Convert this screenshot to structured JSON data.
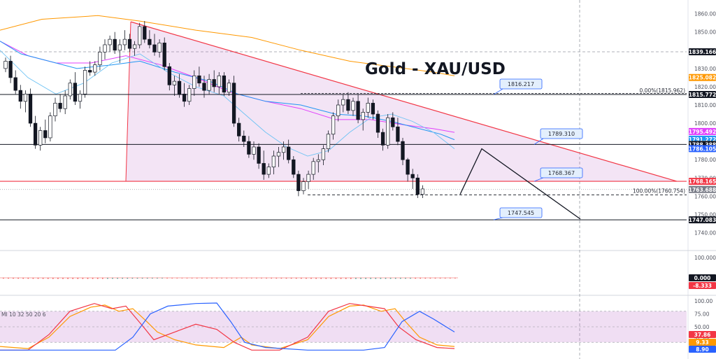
{
  "chart_data": {
    "type": "candlestick",
    "title": "Gold - XAU/USD",
    "y_axis": {
      "ylim": [
        1731,
        1866
      ],
      "ticks": [
        "1860.000",
        "1850.000",
        "1840.000",
        "1830.000",
        "1820.000",
        "1810.000",
        "1800.000",
        "1790.000",
        "1780.000",
        "1770.000",
        "1760.000",
        "1750.000",
        "1740.000"
      ]
    },
    "candles": [
      [
        1830,
        1836,
        1828,
        1834
      ],
      [
        1834,
        1837,
        1822,
        1825
      ],
      [
        1825,
        1829,
        1816,
        1818
      ],
      [
        1818,
        1821,
        1808,
        1812
      ],
      [
        1812,
        1818,
        1806,
        1816
      ],
      [
        1816,
        1819,
        1798,
        1800
      ],
      [
        1800,
        1804,
        1786,
        1788
      ],
      [
        1788,
        1798,
        1785,
        1796
      ],
      [
        1796,
        1802,
        1789,
        1792
      ],
      [
        1792,
        1806,
        1790,
        1804
      ],
      [
        1804,
        1814,
        1801,
        1811
      ],
      [
        1811,
        1816,
        1806,
        1808
      ],
      [
        1808,
        1818,
        1805,
        1815
      ],
      [
        1815,
        1824,
        1813,
        1822
      ],
      [
        1822,
        1828,
        1810,
        1812
      ],
      [
        1812,
        1818,
        1808,
        1816
      ],
      [
        1816,
        1831,
        1814,
        1829
      ],
      [
        1829,
        1834,
        1826,
        1828
      ],
      [
        1828,
        1834,
        1826,
        1832
      ],
      [
        1832,
        1842,
        1829,
        1839
      ],
      [
        1839,
        1846,
        1835,
        1843
      ],
      [
        1843,
        1848,
        1839,
        1846
      ],
      [
        1846,
        1850,
        1838,
        1840
      ],
      [
        1840,
        1846,
        1833,
        1843
      ],
      [
        1843,
        1851,
        1840,
        1846
      ],
      [
        1846,
        1849,
        1839,
        1841
      ],
      [
        1841,
        1845,
        1837,
        1843
      ],
      [
        1843,
        1855,
        1841,
        1853
      ],
      [
        1853,
        1856,
        1844,
        1846
      ],
      [
        1846,
        1851,
        1841,
        1843
      ],
      [
        1843,
        1849,
        1837,
        1839
      ],
      [
        1839,
        1846,
        1836,
        1844
      ],
      [
        1844,
        1847,
        1829,
        1831
      ],
      [
        1831,
        1833,
        1818,
        1821
      ],
      [
        1821,
        1826,
        1815,
        1823
      ],
      [
        1823,
        1827,
        1814,
        1816
      ],
      [
        1816,
        1822,
        1809,
        1812
      ],
      [
        1812,
        1821,
        1810,
        1819
      ],
      [
        1819,
        1829,
        1815,
        1826
      ],
      [
        1826,
        1831,
        1820,
        1822
      ],
      [
        1822,
        1826,
        1814,
        1818
      ],
      [
        1818,
        1827,
        1816,
        1824
      ],
      [
        1824,
        1829,
        1817,
        1820
      ],
      [
        1820,
        1828,
        1816,
        1826
      ],
      [
        1826,
        1828,
        1815,
        1817
      ],
      [
        1817,
        1824,
        1815,
        1822
      ],
      [
        1822,
        1826,
        1798,
        1800
      ],
      [
        1800,
        1803,
        1790,
        1793
      ],
      [
        1793,
        1796,
        1787,
        1790
      ],
      [
        1790,
        1793,
        1781,
        1783
      ],
      [
        1783,
        1790,
        1780,
        1787
      ],
      [
        1787,
        1789,
        1775,
        1778
      ],
      [
        1778,
        1785,
        1769,
        1772
      ],
      [
        1772,
        1778,
        1770,
        1776
      ],
      [
        1776,
        1785,
        1772,
        1782
      ],
      [
        1782,
        1787,
        1776,
        1784
      ],
      [
        1784,
        1790,
        1780,
        1787
      ],
      [
        1787,
        1791,
        1778,
        1780
      ],
      [
        1780,
        1782,
        1770,
        1772
      ],
      [
        1772,
        1774,
        1760,
        1763
      ],
      [
        1763,
        1770,
        1761,
        1768
      ],
      [
        1768,
        1774,
        1764,
        1772
      ],
      [
        1772,
        1781,
        1769,
        1779
      ],
      [
        1779,
        1783,
        1773,
        1780
      ],
      [
        1780,
        1788,
        1777,
        1786
      ],
      [
        1786,
        1796,
        1784,
        1794
      ],
      [
        1794,
        1806,
        1791,
        1804
      ],
      [
        1804,
        1813,
        1801,
        1810
      ],
      [
        1810,
        1816,
        1806,
        1813
      ],
      [
        1813,
        1817,
        1805,
        1807
      ],
      [
        1807,
        1814,
        1804,
        1812
      ],
      [
        1812,
        1816,
        1800,
        1802
      ],
      [
        1802,
        1808,
        1796,
        1806
      ],
      [
        1806,
        1814,
        1803,
        1811
      ],
      [
        1811,
        1813,
        1802,
        1805
      ],
      [
        1805,
        1807,
        1792,
        1795
      ],
      [
        1795,
        1797,
        1785,
        1788
      ],
      [
        1788,
        1805,
        1786,
        1803
      ],
      [
        1803,
        1806,
        1796,
        1798
      ],
      [
        1798,
        1803,
        1788,
        1790
      ],
      [
        1790,
        1792,
        1777,
        1780
      ],
      [
        1780,
        1781,
        1768,
        1772
      ],
      [
        1772,
        1775,
        1764,
        1770
      ],
      [
        1770,
        1772,
        1759,
        1761
      ],
      [
        1761,
        1766,
        1759,
        1764
      ]
    ],
    "y_axis_tags": [
      {
        "label": "1839.166",
        "color": "#131722"
      },
      {
        "label": "1825.082",
        "color": "#ff9800"
      },
      {
        "label": "1815.772",
        "color": "#131722"
      },
      {
        "label": "1795.492",
        "color": "#e040fb"
      },
      {
        "label": "1791.272",
        "color": "#2196f3"
      },
      {
        "label": "1788.388",
        "color": "#131722"
      },
      {
        "label": "1786.105",
        "color": "#2962ff"
      },
      {
        "label": "1768.165",
        "color": "#f23645"
      },
      {
        "label": "1763.688",
        "color": "#787b86"
      },
      {
        "label": "1747.083",
        "color": "#131722"
      }
    ],
    "horizontal_levels": [
      {
        "label": "1816.217",
        "value": 1815.77
      },
      {
        "label": "1789.310",
        "value": 1788.39
      },
      {
        "label": "1768.367",
        "value": 1768.17
      },
      {
        "label": "1747.545",
        "value": 1747.08
      }
    ],
    "fib_labels": [
      "0.00%(1815.962)",
      "100.00%(1760.754)"
    ],
    "macd": {
      "ticks": [
        "100.000",
        "0.000"
      ],
      "tags": [
        {
          "label": "0.000",
          "color": "#131722"
        },
        {
          "label": "-8.333",
          "color": "#f23645"
        }
      ]
    },
    "stochastic": {
      "label": "MI 10 32 50 20 6",
      "ticks": [
        "100.00",
        "75.00",
        "50.00",
        "25.00"
      ],
      "tags": [
        {
          "label": "37.86",
          "color": "#f23645"
        },
        {
          "label": "9.33",
          "color": "#ff9800"
        },
        {
          "label": "8.90",
          "color": "#2962ff"
        }
      ]
    }
  }
}
